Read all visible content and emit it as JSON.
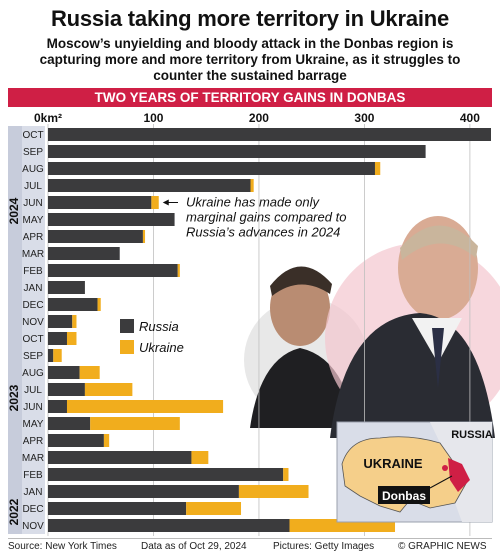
{
  "header": {
    "title": "Russia taking more territory in Ukraine",
    "subtitle": "Moscow’s unyielding and bloody attack in the Donbas region is capturing more and more territory from Ukraine, as it struggles to counter the sustained barrage",
    "banner": "TWO YEARS OF TERRITORY GAINS IN DONBAS"
  },
  "colors": {
    "russia": "#3b3b3d",
    "ukraine": "#f1ad1d",
    "banner": "#cf1f45",
    "grid": "#bfbfbf",
    "map_ukraine": "#f5cf8a",
    "map_donbas": "#cf1f45"
  },
  "chart_data": {
    "type": "bar",
    "orientation": "horizontal",
    "stacked": true,
    "unit_label": "0km²",
    "xlim": [
      0,
      420
    ],
    "xticks": [
      0,
      100,
      200,
      300,
      400
    ],
    "xtick_labels": [
      "0km²",
      "100",
      "200",
      "300",
      "400"
    ],
    "categories": [
      "OCT",
      "SEP",
      "AUG",
      "JUL",
      "JUN",
      "MAY",
      "APR",
      "MAR",
      "FEB",
      "JAN",
      "DEC",
      "NOV",
      "OCT",
      "SEP",
      "AUG",
      "JUL",
      "JUN",
      "MAY",
      "APR",
      "MAR",
      "FEB",
      "JAN",
      "DEC",
      "NOV"
    ],
    "year_groups": [
      {
        "label": "2024",
        "from": 0,
        "to": 9
      },
      {
        "label": "2023",
        "from": 10,
        "to": 21
      },
      {
        "label": "2022",
        "from": 22,
        "to": 23
      }
    ],
    "series": [
      {
        "name": "Russia",
        "values": [
          420,
          358,
          310,
          192,
          98,
          120,
          90,
          68,
          123,
          35,
          47,
          23,
          18,
          5,
          30,
          35,
          18,
          40,
          53,
          136,
          223,
          181,
          131,
          229
        ]
      },
      {
        "name": "Ukraine",
        "values": [
          0,
          0,
          5,
          3,
          7,
          0,
          2,
          0,
          2,
          0,
          3,
          4,
          9,
          8,
          19,
          45,
          148,
          85,
          5,
          16,
          5,
          66,
          52,
          100
        ]
      }
    ],
    "legend": {
      "position": "middle",
      "entries": [
        "Russia",
        "Ukraine"
      ]
    },
    "grid": true,
    "annotation": "Ukraine has made only marginal gains compared to Russia’s advances in 2024"
  },
  "map": {
    "country_label_russia": "RUSSIA",
    "country_label_ukraine": "UKRAINE",
    "region_label": "Donbas"
  },
  "footer": {
    "source": "Source: New York Times",
    "data_as_of": "Data as of Oct 29, 2024",
    "pictures": "Pictures: Getty Images",
    "credit": "© GRAPHIC NEWS"
  }
}
